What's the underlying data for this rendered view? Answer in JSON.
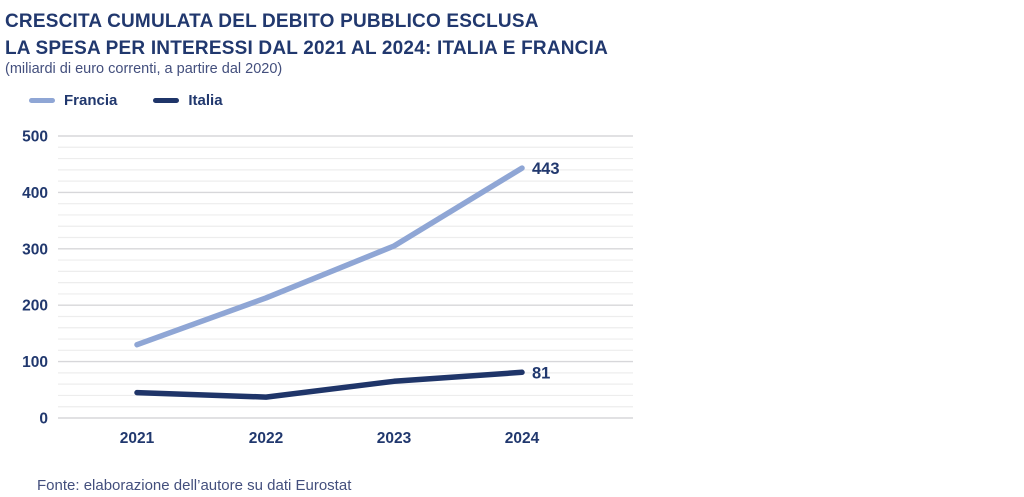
{
  "header": {
    "title_line1": "CRESCITA CUMULATA DEL DEBITO PUBBLICO ESCLUSA",
    "title_line2": "LA SPESA PER INTERESSI DAL 2021 AL 2024: ITALIA E FRANCIA",
    "subtitle": "(miliardi di euro correnti, a partire dal 2020)"
  },
  "legend": [
    {
      "label": "Francia",
      "color": "#8FA6D5"
    },
    {
      "label": "Italia",
      "color": "#1F3569"
    }
  ],
  "chart_data": {
    "type": "line",
    "categories": [
      "2021",
      "2022",
      "2023",
      "2024"
    ],
    "series": [
      {
        "name": "Francia",
        "color": "#8FA6D5",
        "values": [
          130,
          213,
          305,
          443
        ],
        "end_label": "443"
      },
      {
        "name": "Italia",
        "color": "#1F3569",
        "values": [
          45,
          37,
          65,
          81
        ],
        "end_label": "81"
      }
    ],
    "title": "CRESCITA CUMULATA DEL DEBITO PUBBLICO ESCLUSA LA SPESA PER INTERESSI DAL 2021 AL 2024: ITALIA E FRANCIA",
    "subtitle": "(miliardi di euro correnti, a partire dal 2020)",
    "xlabel": "",
    "ylabel": "",
    "ylim": [
      0,
      500
    ],
    "y_major_step": 100,
    "y_minor_step": 20,
    "y_ticks": [
      "0",
      "100",
      "200",
      "300",
      "400",
      "500"
    ],
    "grid": true,
    "legend_position": "top-left"
  },
  "footer": {
    "source": "Fonte: elaborazione dell’autore su dati Eurostat"
  },
  "colors": {
    "title": "#21386E",
    "axis_label": "#21386E",
    "data_label": "#21386E",
    "grid_minor": "#EDEDED",
    "grid_major": "#D7D7DA",
    "background": "#FFFFFF"
  }
}
